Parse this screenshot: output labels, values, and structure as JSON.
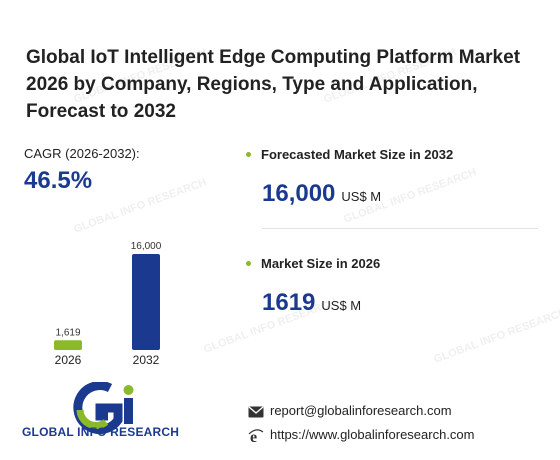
{
  "title": "Global IoT Intelligent Edge Computing Platform Market 2026 by Company, Regions, Type and Application, Forecast to 2032",
  "cagr": {
    "label": "CAGR (2026-2032):",
    "value": "46.5%"
  },
  "forecast": {
    "label": "Forecasted Market Size in 2032",
    "value": "16,000",
    "unit": "US$ M"
  },
  "current": {
    "label": "Market Size in 2026",
    "value": "1619",
    "unit": "US$ M"
  },
  "chart_data": {
    "type": "bar",
    "categories": [
      "2026",
      "2032"
    ],
    "values": [
      1619,
      16000
    ],
    "data_labels": [
      "1,619",
      "16,000"
    ],
    "colors": [
      "#8cb82b",
      "#1b3a8f"
    ]
  },
  "brand": {
    "name": "GLOBAL INFO RESEARCH"
  },
  "contact": {
    "email": "report@globalinforesearch.com",
    "website": "https://www.globalinforesearch.com"
  },
  "colors": {
    "accent_blue": "#1b3a8f",
    "accent_green": "#8cb82b"
  },
  "icons": {
    "email": "envelope-icon",
    "web": "globe-e-icon"
  }
}
